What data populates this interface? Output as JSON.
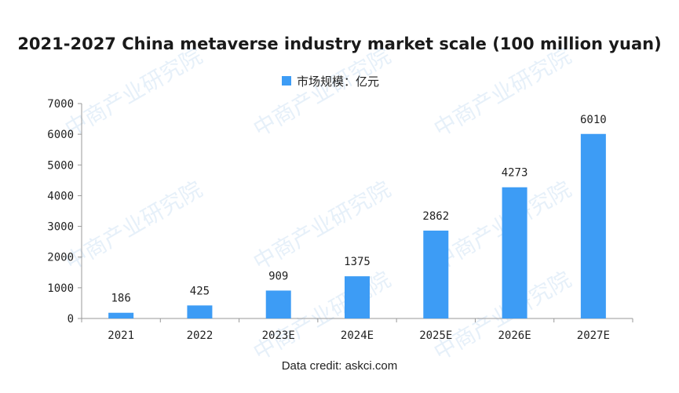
{
  "chart_data": {
    "type": "bar",
    "title": "2021-2027 China metaverse industry market scale (100 million yuan)",
    "categories": [
      "2021",
      "2022",
      "2023E",
      "2024E",
      "2025E",
      "2026E",
      "2027E"
    ],
    "series": [
      {
        "name": "市场规模：亿元",
        "values": [
          186,
          425,
          909,
          1375,
          2862,
          4273,
          6010
        ],
        "color": "#3d9cf5"
      }
    ],
    "yticks": [
      "0",
      "1000",
      "2000",
      "3000",
      "4000",
      "5000",
      "6000",
      "7000"
    ],
    "ylim": [
      0,
      7000
    ],
    "grid": false,
    "legend_position": "top-center"
  },
  "credit": "Data credit: askci.com",
  "watermark": "中商产业研究院"
}
